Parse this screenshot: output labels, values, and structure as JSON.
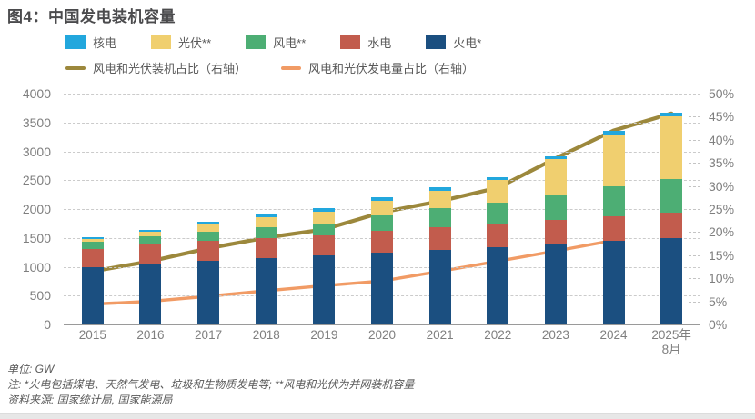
{
  "figure": {
    "title": "图4：中国发电装机容量"
  },
  "legend": {
    "bars": [
      {
        "label": "核电",
        "color": "#22A7DD"
      },
      {
        "label": "光伏**",
        "color": "#F0CF6F"
      },
      {
        "label": "风电**",
        "color": "#4DAE74"
      },
      {
        "label": "水电",
        "color": "#C25C4D"
      },
      {
        "label": "火电*",
        "color": "#1B4F80"
      }
    ],
    "lines": [
      {
        "label": "风电和光伏装机占比（右轴）",
        "color": "#9C883C"
      },
      {
        "label": "风电和光伏发电量占比（右轴）",
        "color": "#F19B65"
      }
    ]
  },
  "chart_data": {
    "type": "bar",
    "subtype": "stacked-bars-with-right-axis-lines",
    "title": "图4：中国发电装机容量",
    "unit": "GW",
    "categories": [
      "2015",
      "2016",
      "2017",
      "2018",
      "2019",
      "2020",
      "2021",
      "2022",
      "2023",
      "2024",
      "2025年\n8月"
    ],
    "series": [
      {
        "name": "火电*",
        "color": "#1B4F80",
        "values": [
          990,
          1054,
          1106,
          1144,
          1190,
          1245,
          1297,
          1332,
          1390,
          1444,
          1490
        ]
      },
      {
        "name": "水电",
        "color": "#C25C4D",
        "values": [
          320,
          332,
          341,
          352,
          356,
          370,
          391,
          413,
          422,
          436,
          443
        ]
      },
      {
        "name": "风电**",
        "color": "#4DAE74",
        "values": [
          131,
          149,
          164,
          184,
          210,
          282,
          328,
          365,
          441,
          521,
          581
        ]
      },
      {
        "name": "光伏**",
        "color": "#F0CF6F",
        "values": [
          43,
          77,
          130,
          174,
          204,
          253,
          306,
          393,
          609,
          887,
          1100
        ]
      },
      {
        "name": "核电",
        "color": "#22A7DD",
        "values": [
          27,
          34,
          36,
          45,
          49,
          50,
          53,
          56,
          57,
          61,
          62
        ]
      }
    ],
    "line_series": [
      {
        "name": "风电和光伏装机占比（右轴）",
        "color": "#9C883C",
        "axis": "right",
        "values": [
          11.5,
          13.7,
          16.5,
          18.8,
          20.6,
          24.3,
          26.7,
          29.6,
          36.0,
          42.0,
          45.7
        ]
      },
      {
        "name": "风电和光伏发电量占比（右轴）",
        "color": "#F19B65",
        "axis": "right",
        "values": [
          4.4,
          5.0,
          6.1,
          7.3,
          8.4,
          9.4,
          11.5,
          13.7,
          15.9,
          18.2
        ]
      }
    ],
    "left_axis": {
      "min": 0,
      "max": 4000,
      "step": 500,
      "ticks": [
        "4000",
        "3500",
        "3000",
        "2500",
        "2000",
        "1500",
        "1000",
        "500",
        "0"
      ]
    },
    "right_axis": {
      "min": 0,
      "max": 50,
      "step": 5,
      "ticks": [
        "50%",
        "45%",
        "40%",
        "35%",
        "30%",
        "25%",
        "20%",
        "15%",
        "10%",
        "5%",
        "0%"
      ]
    },
    "grid": "horizontal-dashed",
    "legend_position": "top"
  },
  "footer": {
    "unit": "单位: GW",
    "note": "注: *火电包括煤电、天然气发电、垃圾和生物质发电等; **风电和光伏为并网装机容量",
    "source": "资料来源: 国家统计局, 国家能源局"
  }
}
